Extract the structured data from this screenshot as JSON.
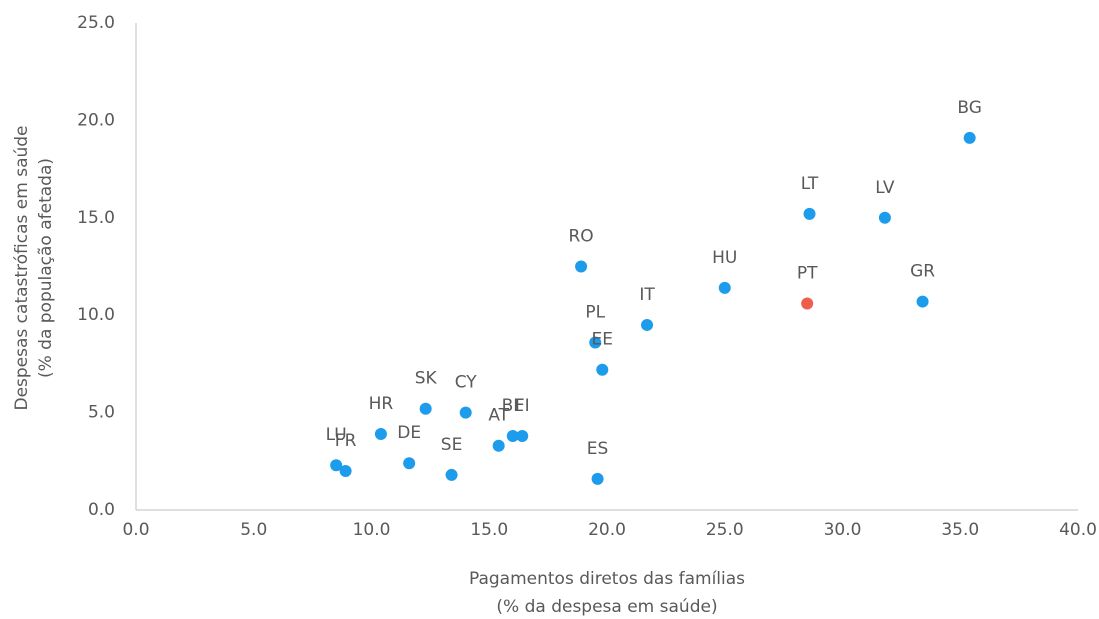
{
  "chart_data": {
    "type": "scatter",
    "x_label": [
      "Pagamentos diretos das famílias",
      "(% da despesa em saúde)"
    ],
    "y_label": [
      "Despesas catastróficas em saúde",
      "(% da população afetada)"
    ],
    "labels": [
      "LU",
      "FR",
      "HR",
      "DE",
      "SK",
      "SE",
      "CY",
      "AT",
      "BE",
      "FI",
      "RO",
      "PL",
      "EE",
      "ES",
      "IT",
      "HU",
      "PT",
      "LT",
      "LV",
      "GR",
      "BG"
    ],
    "x": [
      8.5,
      8.9,
      10.4,
      11.6,
      12.3,
      13.4,
      14.0,
      15.4,
      16.0,
      16.4,
      18.9,
      19.5,
      19.8,
      19.6,
      21.7,
      25.0,
      28.5,
      28.6,
      31.8,
      33.4,
      35.4
    ],
    "values": [
      2.3,
      2.0,
      3.9,
      2.4,
      5.2,
      1.8,
      5.0,
      3.3,
      3.8,
      3.8,
      12.5,
      8.6,
      7.2,
      1.6,
      9.5,
      11.4,
      10.6,
      15.2,
      15.0,
      10.7,
      19.1
    ],
    "colors": [
      "#1c9ceb",
      "#1c9ceb",
      "#1c9ceb",
      "#1c9ceb",
      "#1c9ceb",
      "#1c9ceb",
      "#1c9ceb",
      "#1c9ceb",
      "#1c9ceb",
      "#1c9ceb",
      "#1c9ceb",
      "#1c9ceb",
      "#1c9ceb",
      "#1c9ceb",
      "#1c9ceb",
      "#1c9ceb",
      "#ef5e4c",
      "#1c9ceb",
      "#1c9ceb",
      "#1c9ceb",
      "#1c9ceb"
    ],
    "xlim": [
      0,
      40
    ],
    "xticks": [
      {
        "value": 0,
        "label": "0.0"
      },
      {
        "value": 5,
        "label": "5.0"
      },
      {
        "value": 10,
        "label": "10.0"
      },
      {
        "value": 15,
        "label": "15.0"
      },
      {
        "value": 20,
        "label": "20.0"
      },
      {
        "value": 25,
        "label": "25.0"
      },
      {
        "value": 30,
        "label": "30.0"
      },
      {
        "value": 35,
        "label": "35.0"
      },
      {
        "value": 40,
        "label": "40.0"
      }
    ],
    "ylim": [
      0,
      25
    ],
    "yticks": [
      {
        "value": 0,
        "label": "0.0"
      },
      {
        "value": 5,
        "label": "5.0"
      },
      {
        "value": 10,
        "label": "10.0"
      },
      {
        "value": 15,
        "label": "15.0"
      },
      {
        "value": 20,
        "label": "20.0"
      },
      {
        "value": 25,
        "label": "25.0"
      }
    ],
    "grid": false
  }
}
